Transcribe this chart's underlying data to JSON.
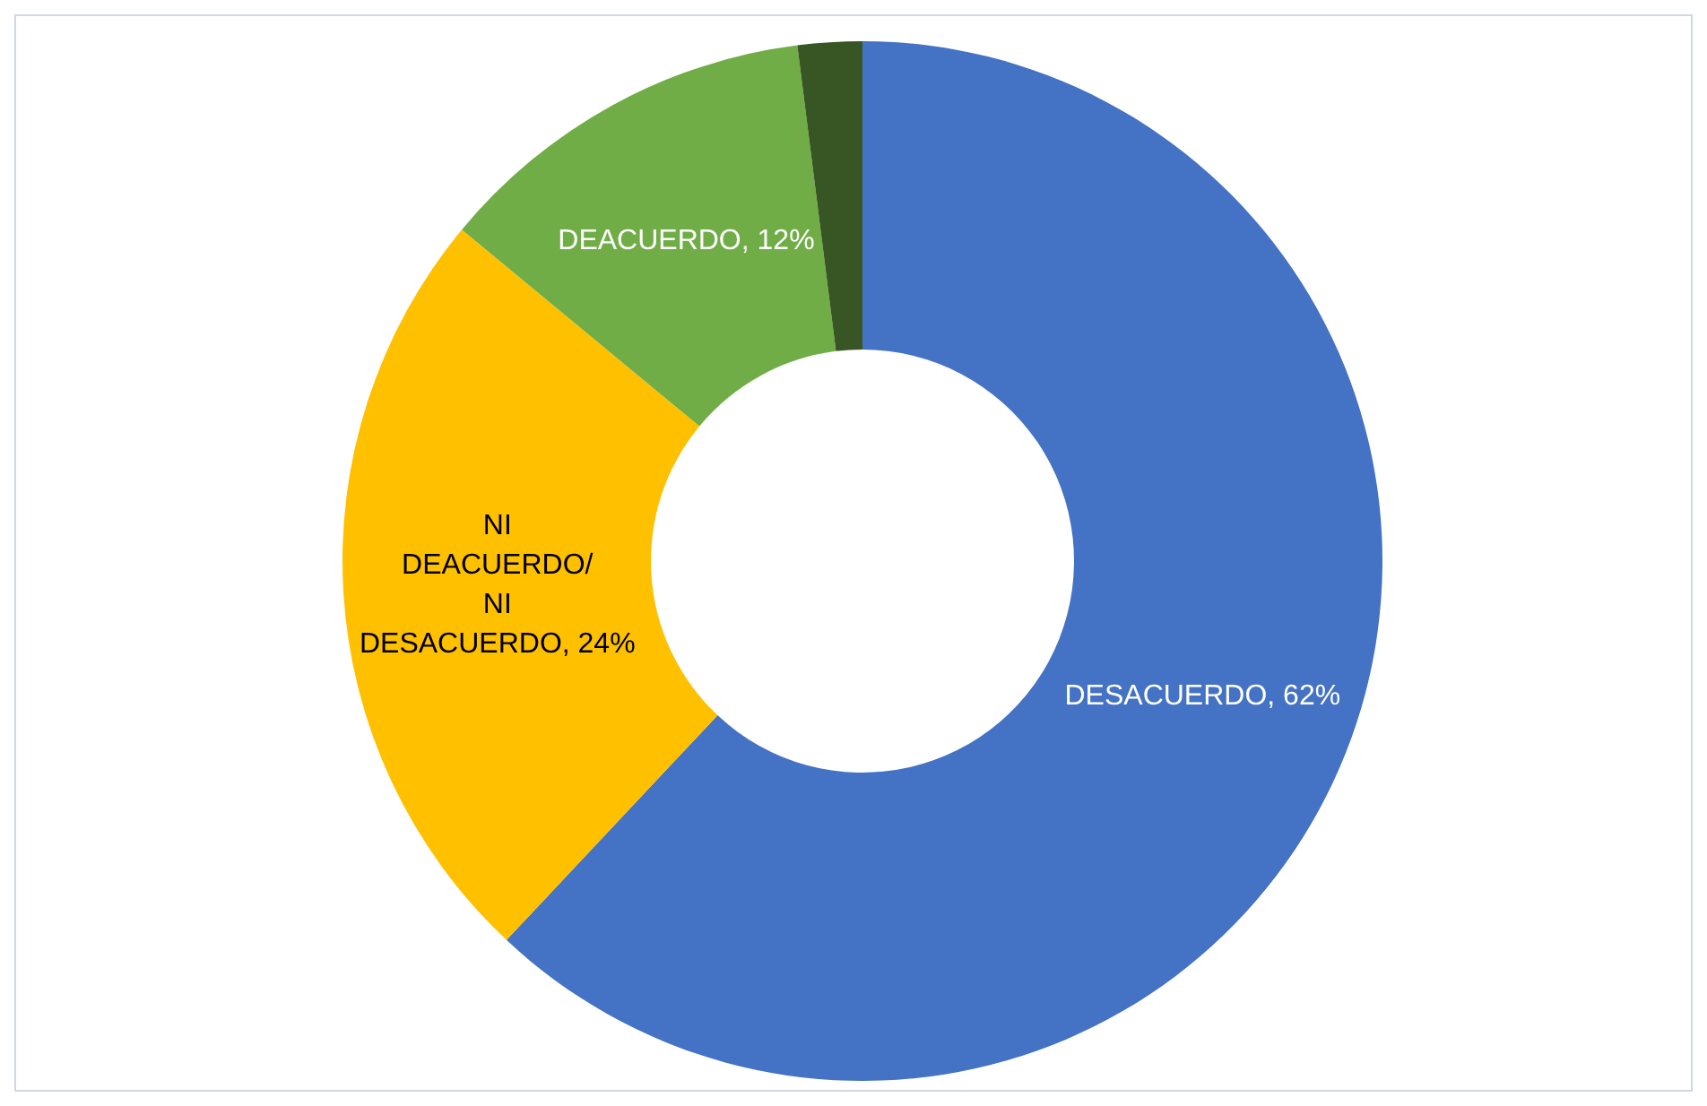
{
  "chart_data": {
    "type": "donut",
    "categories": [
      "DESACUERDO",
      "NI DEACUERDO/ NI DESACUERDO",
      "DEACUERDO",
      null
    ],
    "values": [
      62,
      24,
      12,
      2
    ],
    "colors": [
      "#4472c4",
      "#ffc000",
      "#70ad47",
      "#375623"
    ],
    "value_labels": [
      "62%",
      "24%",
      "12%",
      null
    ],
    "legend": false
  }
}
